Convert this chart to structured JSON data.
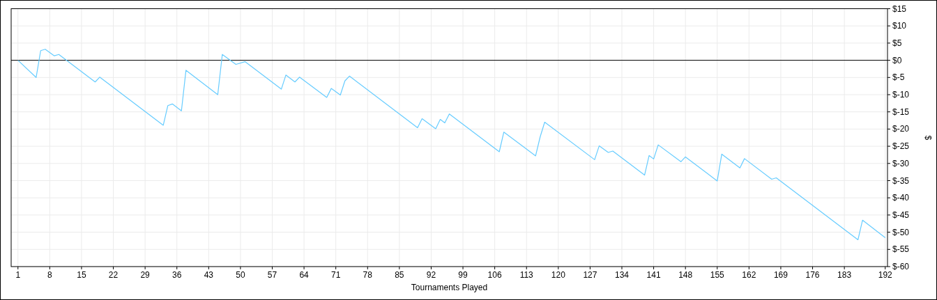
{
  "chart_data": {
    "type": "line",
    "xlabel": "Tournaments Played",
    "ylabel": "$",
    "x": [
      1,
      5,
      6,
      7,
      9,
      10,
      18,
      19,
      33,
      34,
      35,
      37,
      38,
      45,
      46,
      49,
      51,
      59,
      60,
      62,
      63,
      69,
      70,
      72,
      73,
      74,
      89,
      90,
      93,
      94,
      95,
      96,
      107,
      108,
      115,
      116,
      117,
      128,
      129,
      131,
      132,
      139,
      140,
      141,
      142,
      147,
      148,
      155,
      156,
      160,
      161,
      167,
      168,
      186,
      187,
      192
    ],
    "series": [
      {
        "color": "#66ccff",
        "values": [
          0,
          -5.0,
          2.8,
          3.2,
          1.3,
          1.7,
          -6.3,
          -4.9,
          -18.9,
          -13.2,
          -12.7,
          -14.7,
          -2.9,
          -10.0,
          1.7,
          -1.2,
          -0.4,
          -8.4,
          -4.3,
          -6.3,
          -4.9,
          -10.8,
          -8.2,
          -10.1,
          -6.0,
          -4.6,
          -19.6,
          -17.0,
          -19.9,
          -17.2,
          -18.2,
          -15.6,
          -26.6,
          -20.9,
          -27.8,
          -22.3,
          -18.0,
          -28.9,
          -24.9,
          -26.8,
          -26.4,
          -33.4,
          -27.7,
          -28.7,
          -24.6,
          -29.5,
          -28.1,
          -35.1,
          -27.3,
          -31.3,
          -28.6,
          -34.6,
          -34.2,
          -52.2,
          -46.5,
          -51.6
        ]
      }
    ],
    "xlim": [
      -0.5,
      192.5
    ],
    "xticks": [
      1,
      8,
      15,
      22,
      29,
      36,
      43,
      50,
      57,
      64,
      71,
      78,
      85,
      92,
      99,
      106,
      113,
      120,
      127,
      134,
      141,
      148,
      155,
      162,
      169,
      176,
      183,
      192
    ],
    "ylim": [
      -60,
      15
    ],
    "yticks": [
      {
        "value": 15,
        "label": "$15"
      },
      {
        "value": 10,
        "label": "$10"
      },
      {
        "value": 5,
        "label": "$5"
      },
      {
        "value": 0,
        "label": "$0"
      },
      {
        "value": -5,
        "label": "$-5"
      },
      {
        "value": -10,
        "label": "$-10"
      },
      {
        "value": -15,
        "label": "$-15"
      },
      {
        "value": -20,
        "label": "$-20"
      },
      {
        "value": -25,
        "label": "$-25"
      },
      {
        "value": -30,
        "label": "$-30"
      },
      {
        "value": -35,
        "label": "$-35"
      },
      {
        "value": -40,
        "label": "$-40"
      },
      {
        "value": -45,
        "label": "$-45"
      },
      {
        "value": -50,
        "label": "$-50"
      },
      {
        "value": -55,
        "label": "$-55"
      },
      {
        "value": -60,
        "label": "$-60"
      }
    ],
    "grid": true,
    "ref_lines": [
      {
        "axis": "y",
        "value": 0,
        "color": "#000000"
      }
    ]
  }
}
